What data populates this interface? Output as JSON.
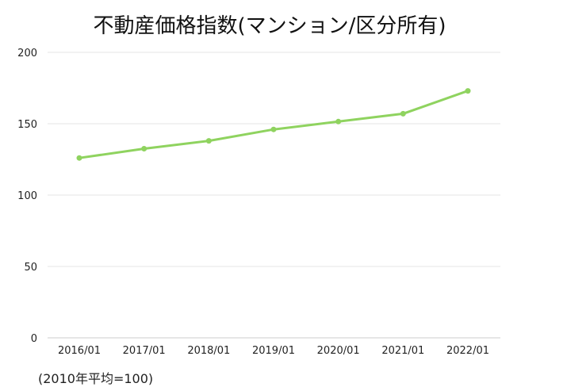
{
  "chart_data": {
    "type": "line",
    "title": "不動産価格指数(マンション/区分所有)",
    "note": "(2010年平均=100)",
    "categories": [
      "2016/01",
      "2017/01",
      "2018/01",
      "2019/01",
      "2020/01",
      "2021/01",
      "2022/01"
    ],
    "series": [
      {
        "values": [
          126,
          132.5,
          138,
          146,
          151.5,
          157,
          173
        ]
      }
    ],
    "ylim": [
      0,
      200
    ],
    "yticks": [
      0,
      50,
      100,
      150,
      200
    ],
    "grid": true,
    "line_color": "#8fd35f",
    "grid_color": "#e6e6e6",
    "axis_color": "#cccccc"
  }
}
